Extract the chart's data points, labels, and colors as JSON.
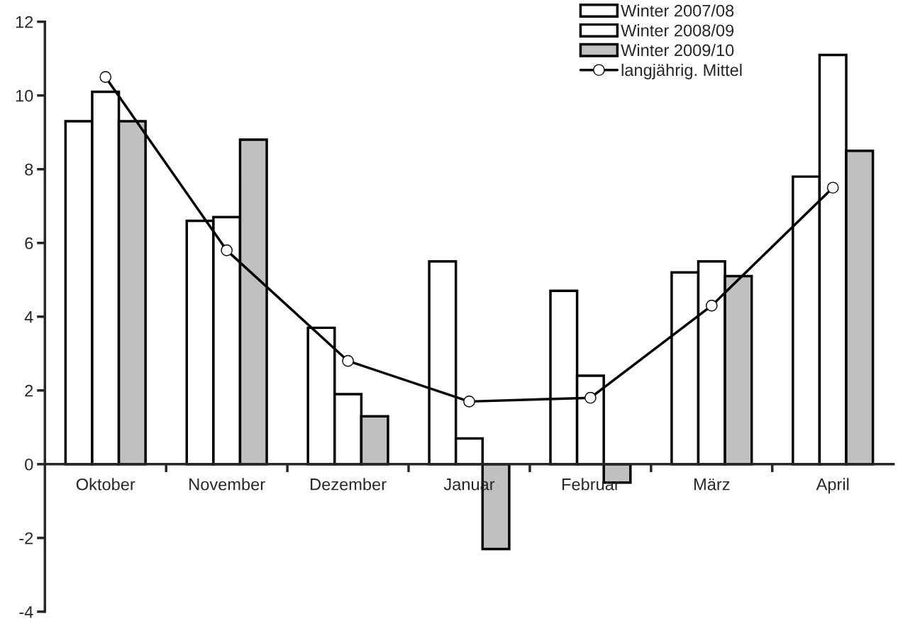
{
  "chart_data": {
    "type": "bar",
    "categories": [
      "Oktober",
      "November",
      "Dezember",
      "Januar",
      "Februar",
      "März",
      "April"
    ],
    "series": [
      {
        "name": "Winter 2007/08",
        "color": "#ffffff",
        "values": [
          9.3,
          6.6,
          3.7,
          5.5,
          4.7,
          5.2,
          7.8
        ]
      },
      {
        "name": "Winter 2008/09",
        "color": "#ffffff",
        "values": [
          10.1,
          6.7,
          1.9,
          0.7,
          2.4,
          5.5,
          11.1
        ]
      },
      {
        "name": "Winter 2009/10",
        "color": "#c0c0c0",
        "values": [
          9.3,
          8.8,
          1.3,
          -2.3,
          -0.5,
          5.1,
          8.5
        ]
      },
      {
        "name": "langjährig. Mittel",
        "type": "line",
        "color": "#000000",
        "marker": "circle",
        "line_style": "solid",
        "values": [
          10.5,
          5.8,
          2.8,
          1.7,
          1.8,
          4.3,
          7.5
        ]
      }
    ],
    "ylim": [
      -4,
      12
    ],
    "yticks": [
      -4,
      -2,
      0,
      2,
      4,
      6,
      8,
      10,
      12
    ],
    "grid": false,
    "legend": "top right"
  }
}
